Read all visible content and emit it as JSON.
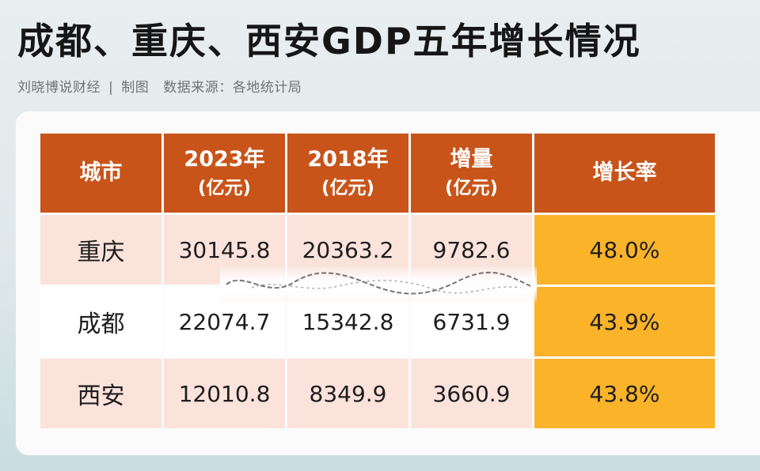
{
  "title": "成都、重庆、西安GDP五年增长情况",
  "subtitle": {
    "author": "刘晓博说财经",
    "separator": "|",
    "made": "制图",
    "source": "数据来源：各地统计局"
  },
  "colors": {
    "header_bg": "#c8541a",
    "row_shade": "#fbe3dc",
    "rate_highlight": "#fbb32a"
  },
  "chart_data": {
    "type": "table",
    "columns": [
      {
        "label": "城市",
        "unit": ""
      },
      {
        "label": "2023年",
        "unit": "(亿元)"
      },
      {
        "label": "2018年",
        "unit": "(亿元)"
      },
      {
        "label": "增量",
        "unit": "(亿元)"
      },
      {
        "label": "增长率",
        "unit": ""
      }
    ],
    "rows": [
      {
        "city": "重庆",
        "gdp2023": "30145.8",
        "gdp2018": "20363.2",
        "increase": "9782.6",
        "rate": "48.0%"
      },
      {
        "city": "成都",
        "gdp2023": "22074.7",
        "gdp2018": "15342.8",
        "increase": "6731.9",
        "rate": "43.9%"
      },
      {
        "city": "西安",
        "gdp2023": "12010.8",
        "gdp2018": "8349.9",
        "increase": "3660.9",
        "rate": "43.8%"
      }
    ]
  }
}
